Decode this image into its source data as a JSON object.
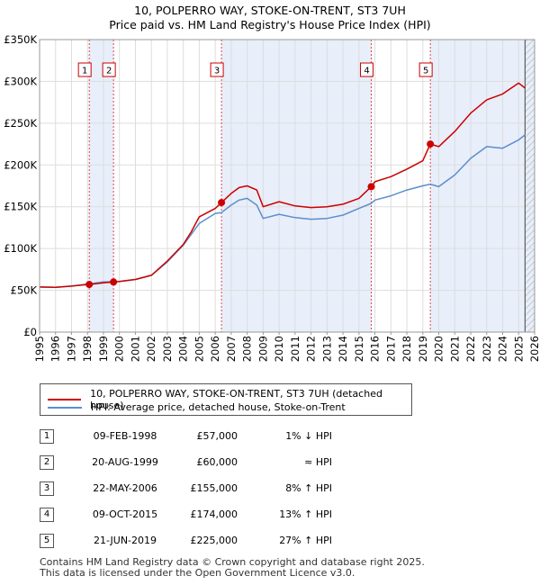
{
  "chart_data": {
    "type": "line",
    "title": "10, POLPERRO WAY, STOKE-ON-TRENT, ST3 7UH",
    "subtitle": "Price paid vs. HM Land Registry's House Price Index (HPI)",
    "xlim": [
      1995,
      2026
    ],
    "ylim": [
      0,
      350000
    ],
    "x_ticks": [
      "1995",
      "1996",
      "1997",
      "1998",
      "1999",
      "2000",
      "2001",
      "2002",
      "2003",
      "2004",
      "2005",
      "2006",
      "2007",
      "2008",
      "2009",
      "2010",
      "2011",
      "2012",
      "2013",
      "2014",
      "2015",
      "2016",
      "2017",
      "2018",
      "2019",
      "2020",
      "2021",
      "2022",
      "2023",
      "2024",
      "2025",
      "2026"
    ],
    "y_ticks": [
      {
        "value": 0,
        "label": "£0"
      },
      {
        "value": 50000,
        "label": "£50K"
      },
      {
        "value": 100000,
        "label": "£100K"
      },
      {
        "value": 150000,
        "label": "£150K"
      },
      {
        "value": 200000,
        "label": "£200K"
      },
      {
        "value": 250000,
        "label": "£250K"
      },
      {
        "value": 300000,
        "label": "£300K"
      },
      {
        "value": 350000,
        "label": "£350K"
      }
    ],
    "series": [
      {
        "name": "10, POLPERRO WAY, STOKE-ON-TRENT, ST3 7UH (detached house)",
        "color": "#cc0000",
        "points": [
          [
            1995.0,
            54000
          ],
          [
            1996.0,
            53500
          ],
          [
            1997.0,
            55000
          ],
          [
            1998.0,
            57000
          ],
          [
            1998.11,
            57000
          ],
          [
            1999.0,
            59000
          ],
          [
            1999.63,
            60000
          ],
          [
            2000.0,
            60500
          ],
          [
            2001.0,
            63000
          ],
          [
            2002.0,
            68000
          ],
          [
            2003.0,
            85000
          ],
          [
            2004.0,
            105000
          ],
          [
            2004.5,
            120000
          ],
          [
            2005.0,
            138000
          ],
          [
            2006.0,
            148000
          ],
          [
            2006.39,
            155000
          ],
          [
            2007.0,
            166000
          ],
          [
            2007.5,
            173000
          ],
          [
            2008.0,
            175000
          ],
          [
            2008.6,
            170000
          ],
          [
            2009.0,
            150000
          ],
          [
            2010.0,
            156000
          ],
          [
            2011.0,
            151000
          ],
          [
            2012.0,
            149000
          ],
          [
            2013.0,
            150000
          ],
          [
            2014.0,
            153000
          ],
          [
            2015.0,
            160000
          ],
          [
            2015.77,
            174000
          ],
          [
            2016.0,
            180000
          ],
          [
            2017.0,
            186000
          ],
          [
            2018.0,
            195000
          ],
          [
            2019.0,
            205000
          ],
          [
            2019.47,
            225000
          ],
          [
            2020.0,
            222000
          ],
          [
            2021.0,
            240000
          ],
          [
            2022.0,
            262000
          ],
          [
            2023.0,
            278000
          ],
          [
            2024.0,
            285000
          ],
          [
            2025.0,
            298000
          ],
          [
            2025.4,
            292000
          ]
        ]
      },
      {
        "name": "HPI: Average price, detached house, Stoke-on-Trent",
        "color": "#5b8fcc",
        "points": [
          [
            1995.0,
            54000
          ],
          [
            1996.0,
            53500
          ],
          [
            1997.0,
            55000
          ],
          [
            1998.0,
            57500
          ],
          [
            1999.0,
            60000
          ],
          [
            2000.0,
            60500
          ],
          [
            2001.0,
            63000
          ],
          [
            2002.0,
            68000
          ],
          [
            2003.0,
            84000
          ],
          [
            2004.0,
            104000
          ],
          [
            2005.0,
            130000
          ],
          [
            2006.0,
            142000
          ],
          [
            2006.39,
            143000
          ],
          [
            2007.0,
            152000
          ],
          [
            2007.5,
            158000
          ],
          [
            2008.0,
            160000
          ],
          [
            2008.6,
            152000
          ],
          [
            2009.0,
            136000
          ],
          [
            2010.0,
            141000
          ],
          [
            2011.0,
            137000
          ],
          [
            2012.0,
            135000
          ],
          [
            2013.0,
            136000
          ],
          [
            2014.0,
            140000
          ],
          [
            2015.0,
            148000
          ],
          [
            2015.77,
            154000
          ],
          [
            2016.0,
            158000
          ],
          [
            2017.0,
            163000
          ],
          [
            2018.0,
            170000
          ],
          [
            2019.0,
            175000
          ],
          [
            2019.47,
            177000
          ],
          [
            2020.0,
            174000
          ],
          [
            2021.0,
            188000
          ],
          [
            2022.0,
            208000
          ],
          [
            2023.0,
            222000
          ],
          [
            2024.0,
            220000
          ],
          [
            2025.0,
            230000
          ],
          [
            2025.4,
            236000
          ]
        ]
      }
    ],
    "sales": [
      {
        "id": "1",
        "x": 1998.11,
        "price": 57000
      },
      {
        "id": "2",
        "x": 1999.63,
        "price": 60000
      },
      {
        "id": "3",
        "x": 2006.39,
        "price": 155000
      },
      {
        "id": "4",
        "x": 2015.77,
        "price": 174000
      },
      {
        "id": "5",
        "x": 2019.47,
        "price": 225000
      }
    ],
    "shaded_ranges": [
      [
        1998.11,
        1999.63
      ],
      [
        2006.39,
        2015.77
      ],
      [
        2019.47,
        2026
      ]
    ],
    "hatched_range": [
      2025.4,
      2026
    ]
  },
  "legend": {
    "items": [
      {
        "label": "10, POLPERRO WAY, STOKE-ON-TRENT, ST3 7UH (detached house)",
        "color": "#cc0000"
      },
      {
        "label": "HPI: Average price, detached house, Stoke-on-Trent",
        "color": "#5b8fcc"
      }
    ]
  },
  "transactions": [
    {
      "num": "1",
      "date": "09-FEB-1998",
      "price": "£57,000",
      "hpi": "1% ↓ HPI"
    },
    {
      "num": "2",
      "date": "20-AUG-1999",
      "price": "£60,000",
      "hpi": "≈ HPI"
    },
    {
      "num": "3",
      "date": "22-MAY-2006",
      "price": "£155,000",
      "hpi": "8% ↑ HPI"
    },
    {
      "num": "4",
      "date": "09-OCT-2015",
      "price": "£174,000",
      "hpi": "13% ↑ HPI"
    },
    {
      "num": "5",
      "date": "21-JUN-2019",
      "price": "£225,000",
      "hpi": "27% ↑ HPI"
    }
  ],
  "footer": {
    "line1": "Contains HM Land Registry data © Crown copyright and database right 2025.",
    "line2": "This data is licensed under the Open Government Licence v3.0."
  }
}
